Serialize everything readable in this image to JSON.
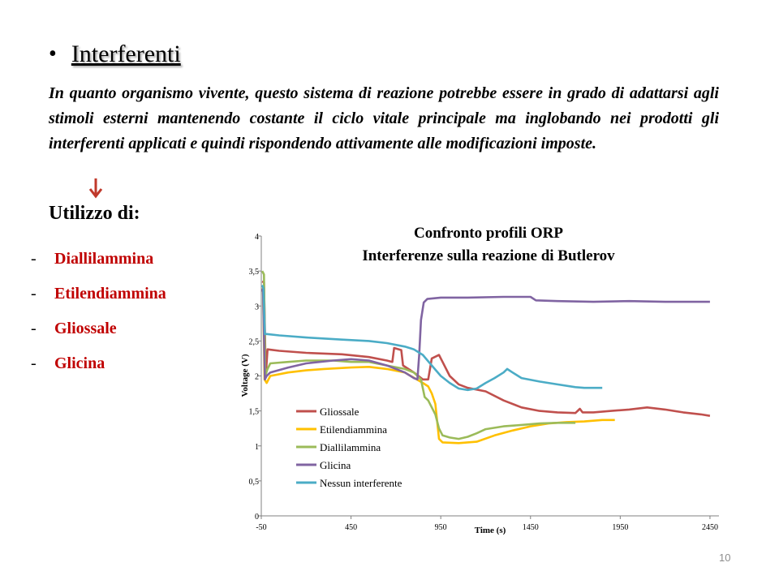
{
  "slide": {
    "title": "Interferenti",
    "paragraph": "In quanto organismo vivente, questo sistema di reazione potrebbe essere in grado di adattarsi agli stimoli esterni mantenendo costante il ciclo vitale principale ma inglobando nei prodotti gli interferenti applicati e quindi rispondendo attivamente alle modificazioni imposte.",
    "usage_label": "Utilizzo di:",
    "interferents": [
      {
        "dash": "-",
        "name": "Diallilammina"
      },
      {
        "dash": "-",
        "name": "Etilendiammina"
      },
      {
        "dash": "-",
        "name": "Gliossale"
      },
      {
        "dash": "-",
        "name": "Glicina"
      }
    ],
    "page_number": "10"
  },
  "colors": {
    "accent_red": "#c00000",
    "arrow": "#c0392b"
  },
  "chart_data": {
    "type": "line",
    "title": "Confronto profili ORP",
    "subtitle": "Interferenze sulla reazione di Butlerov",
    "xlabel": "Time (s)",
    "ylabel": "Voltage (V)",
    "xlim": [
      -50,
      2500
    ],
    "ylim": [
      0,
      4
    ],
    "x_ticks": [
      "-50",
      "450",
      "950",
      "1450",
      "1950",
      "2450"
    ],
    "y_ticks": [
      "0",
      "0,5",
      "1",
      "1,5",
      "2",
      "2,5",
      "3",
      "3,5",
      "4"
    ],
    "grid": false,
    "legend_position": "bottom-left",
    "series": [
      {
        "name": "Gliossale",
        "color": "#c0504d",
        "points": [
          [
            -45,
            3.35
          ],
          [
            -35,
            3.34
          ],
          [
            -25,
            2.0
          ],
          [
            -15,
            2.38
          ],
          [
            50,
            2.36
          ],
          [
            200,
            2.33
          ],
          [
            400,
            2.31
          ],
          [
            550,
            2.27
          ],
          [
            650,
            2.22
          ],
          [
            680,
            2.2
          ],
          [
            690,
            2.4
          ],
          [
            730,
            2.37
          ],
          [
            740,
            2.15
          ],
          [
            800,
            2.05
          ],
          [
            850,
            1.95
          ],
          [
            880,
            1.95
          ],
          [
            900,
            2.25
          ],
          [
            940,
            2.3
          ],
          [
            960,
            2.2
          ],
          [
            1000,
            2.0
          ],
          [
            1050,
            1.88
          ],
          [
            1100,
            1.83
          ],
          [
            1200,
            1.78
          ],
          [
            1300,
            1.65
          ],
          [
            1400,
            1.55
          ],
          [
            1500,
            1.5
          ],
          [
            1600,
            1.48
          ],
          [
            1700,
            1.47
          ],
          [
            1725,
            1.53
          ],
          [
            1740,
            1.48
          ],
          [
            1800,
            1.48
          ],
          [
            1900,
            1.5
          ],
          [
            2000,
            1.52
          ],
          [
            2100,
            1.55
          ],
          [
            2200,
            1.52
          ],
          [
            2300,
            1.48
          ],
          [
            2400,
            1.45
          ],
          [
            2450,
            1.43
          ]
        ]
      },
      {
        "name": "Etilendiammina",
        "color": "#ffc000",
        "points": [
          [
            -48,
            3.25
          ],
          [
            -40,
            3.22
          ],
          [
            -32,
            1.95
          ],
          [
            -20,
            1.9
          ],
          [
            0,
            2.0
          ],
          [
            100,
            2.05
          ],
          [
            200,
            2.08
          ],
          [
            300,
            2.1
          ],
          [
            450,
            2.12
          ],
          [
            550,
            2.13
          ],
          [
            650,
            2.1
          ],
          [
            750,
            2.05
          ],
          [
            850,
            1.9
          ],
          [
            880,
            1.85
          ],
          [
            900,
            1.75
          ],
          [
            920,
            1.6
          ],
          [
            940,
            1.1
          ],
          [
            960,
            1.05
          ],
          [
            1050,
            1.04
          ],
          [
            1150,
            1.06
          ],
          [
            1250,
            1.15
          ],
          [
            1350,
            1.22
          ],
          [
            1450,
            1.28
          ],
          [
            1550,
            1.32
          ],
          [
            1650,
            1.34
          ],
          [
            1750,
            1.35
          ],
          [
            1850,
            1.37
          ],
          [
            1920,
            1.37
          ]
        ]
      },
      {
        "name": "Diallilammina",
        "color": "#9bbb59",
        "points": [
          [
            -45,
            3.5
          ],
          [
            -35,
            3.45
          ],
          [
            -28,
            2.0
          ],
          [
            -15,
            2.1
          ],
          [
            0,
            2.18
          ],
          [
            100,
            2.2
          ],
          [
            200,
            2.22
          ],
          [
            350,
            2.22
          ],
          [
            450,
            2.2
          ],
          [
            550,
            2.2
          ],
          [
            650,
            2.15
          ],
          [
            750,
            2.1
          ],
          [
            800,
            2.05
          ],
          [
            820,
            2.0
          ],
          [
            840,
            1.95
          ],
          [
            860,
            1.7
          ],
          [
            880,
            1.65
          ],
          [
            900,
            1.55
          ],
          [
            920,
            1.45
          ],
          [
            940,
            1.25
          ],
          [
            960,
            1.15
          ],
          [
            1000,
            1.12
          ],
          [
            1050,
            1.1
          ],
          [
            1100,
            1.13
          ],
          [
            1150,
            1.18
          ],
          [
            1200,
            1.24
          ],
          [
            1300,
            1.28
          ],
          [
            1400,
            1.3
          ],
          [
            1500,
            1.32
          ],
          [
            1600,
            1.33
          ],
          [
            1700,
            1.33
          ]
        ]
      },
      {
        "name": "Glicina",
        "color": "#8064a2",
        "points": [
          [
            -46,
            3.25
          ],
          [
            -40,
            3.2
          ],
          [
            -30,
            1.95
          ],
          [
            -20,
            2.0
          ],
          [
            0,
            2.05
          ],
          [
            100,
            2.12
          ],
          [
            200,
            2.18
          ],
          [
            350,
            2.22
          ],
          [
            450,
            2.24
          ],
          [
            550,
            2.22
          ],
          [
            650,
            2.15
          ],
          [
            750,
            2.05
          ],
          [
            800,
            1.97
          ],
          [
            820,
            1.95
          ],
          [
            830,
            2.3
          ],
          [
            840,
            2.8
          ],
          [
            855,
            3.05
          ],
          [
            875,
            3.1
          ],
          [
            950,
            3.12
          ],
          [
            1100,
            3.12
          ],
          [
            1300,
            3.13
          ],
          [
            1450,
            3.13
          ],
          [
            1480,
            3.08
          ],
          [
            1600,
            3.07
          ],
          [
            1800,
            3.06
          ],
          [
            2000,
            3.07
          ],
          [
            2200,
            3.06
          ],
          [
            2450,
            3.06
          ]
        ]
      },
      {
        "name": "Nessun interferente",
        "color": "#4bacc6",
        "points": [
          [
            -45,
            3.3
          ],
          [
            -38,
            3.25
          ],
          [
            -30,
            2.6
          ],
          [
            -20,
            2.6
          ],
          [
            50,
            2.58
          ],
          [
            200,
            2.55
          ],
          [
            400,
            2.52
          ],
          [
            550,
            2.5
          ],
          [
            650,
            2.47
          ],
          [
            750,
            2.42
          ],
          [
            800,
            2.38
          ],
          [
            850,
            2.3
          ],
          [
            900,
            2.15
          ],
          [
            950,
            2.0
          ],
          [
            1000,
            1.9
          ],
          [
            1050,
            1.82
          ],
          [
            1100,
            1.8
          ],
          [
            1150,
            1.82
          ],
          [
            1200,
            1.9
          ],
          [
            1250,
            1.97
          ],
          [
            1300,
            2.05
          ],
          [
            1320,
            2.1
          ],
          [
            1350,
            2.05
          ],
          [
            1400,
            1.97
          ],
          [
            1500,
            1.92
          ],
          [
            1600,
            1.88
          ],
          [
            1700,
            1.84
          ],
          [
            1750,
            1.83
          ],
          [
            1800,
            1.83
          ],
          [
            1850,
            1.83
          ]
        ]
      }
    ]
  }
}
